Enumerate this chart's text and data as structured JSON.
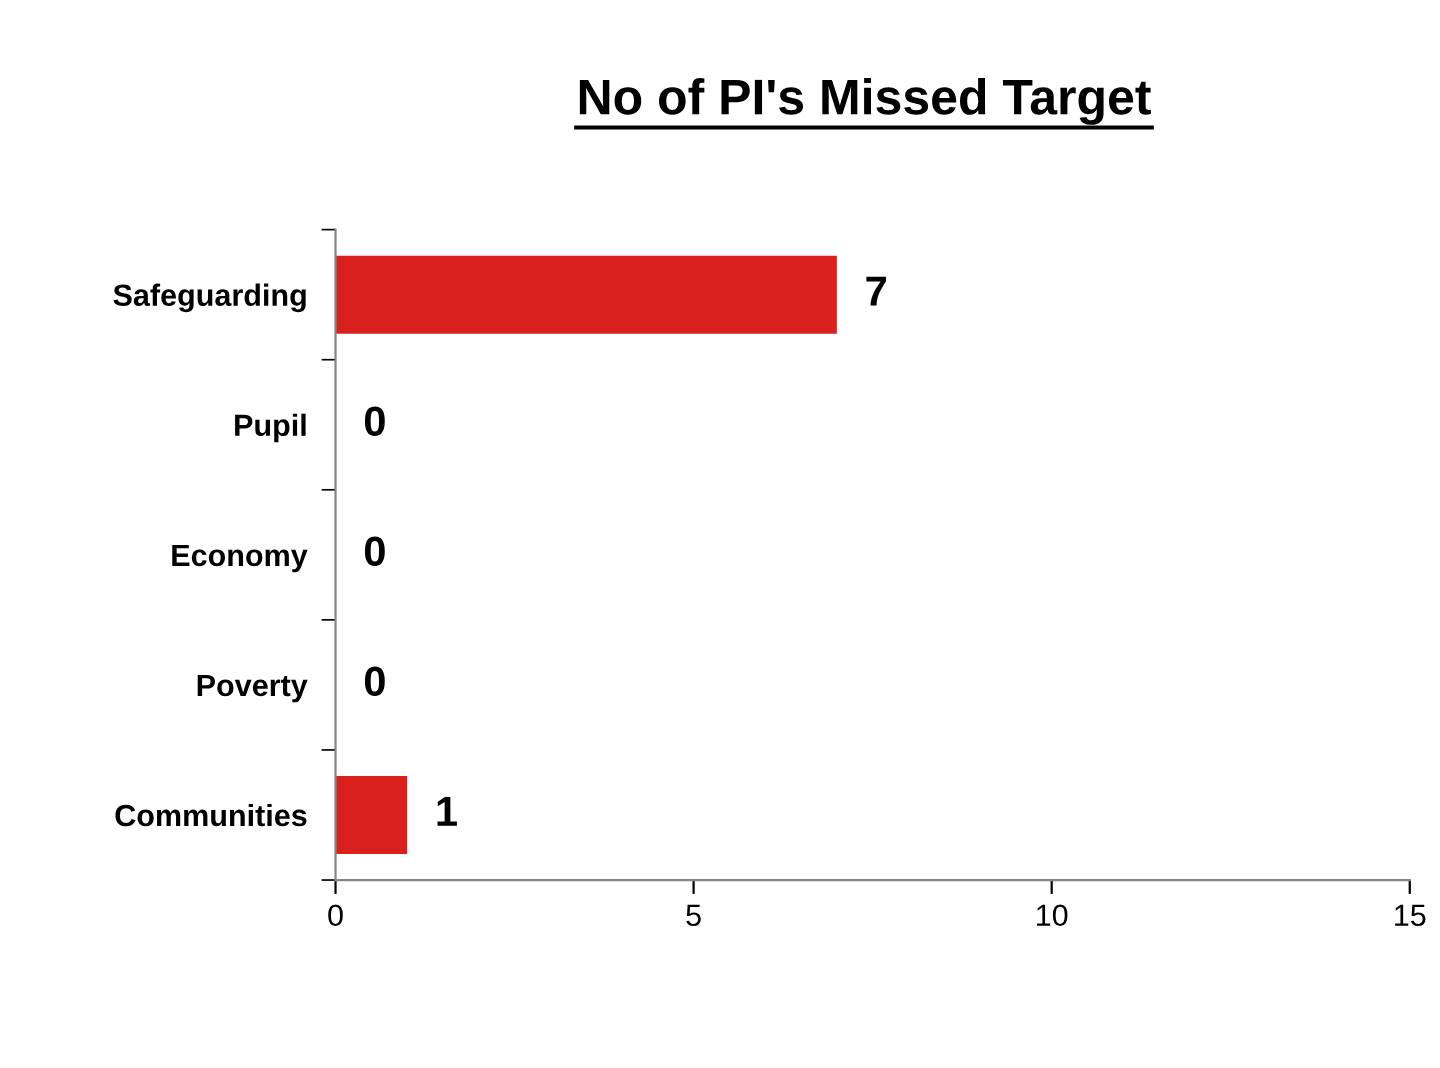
{
  "chart_data": {
    "type": "bar",
    "orientation": "horizontal",
    "title": "No of PI's Missed Target",
    "categories": [
      "Safeguarding",
      "Pupil",
      "Economy",
      "Poverty",
      "Communities"
    ],
    "values": [
      7,
      0,
      0,
      0,
      1
    ],
    "color": "#d9201c",
    "xlim": [
      0,
      15
    ],
    "xticks": [
      0,
      5,
      10,
      15
    ],
    "grid": false,
    "data_labels": true
  }
}
